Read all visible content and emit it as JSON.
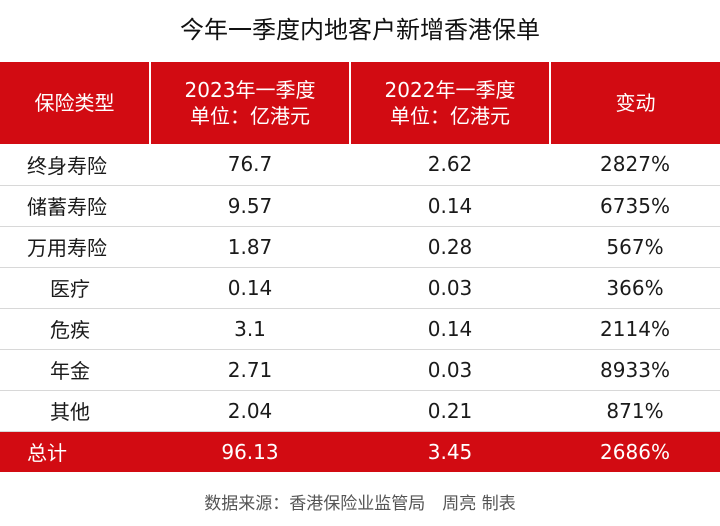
{
  "title": "今年一季度内地客户新增香港保单",
  "headers": {
    "type": "保险类型",
    "col2_line1": "2023年一季度",
    "col2_line2": "单位：亿港元",
    "col3_line1": "2022年一季度",
    "col3_line2": "单位：亿港元",
    "change": "变动"
  },
  "rows": [
    {
      "type": "终身寿险",
      "y2023": "76.7",
      "y2022": "2.62",
      "change": "2827%"
    },
    {
      "type": "储蓄寿险",
      "y2023": "9.57",
      "y2022": "0.14",
      "change": "6735%"
    },
    {
      "type": "万用寿险",
      "y2023": "1.87",
      "y2022": "0.28",
      "change": "567%"
    },
    {
      "type": "医疗",
      "y2023": "0.14",
      "y2022": "0.03",
      "change": "366%"
    },
    {
      "type": "危疾",
      "y2023": "3.1",
      "y2022": "0.14",
      "change": "2114%"
    },
    {
      "type": "年金",
      "y2023": "2.71",
      "y2022": "0.03",
      "change": "8933%"
    },
    {
      "type": "其他",
      "y2023": "2.04",
      "y2022": "0.21",
      "change": "871%"
    }
  ],
  "total": {
    "type": "总计",
    "y2023": "96.13",
    "y2022": "3.45",
    "change": "2686%"
  },
  "footer": "数据来源：香港保险业监管局　周亮 制表",
  "colors": {
    "accent": "#d20b12"
  }
}
